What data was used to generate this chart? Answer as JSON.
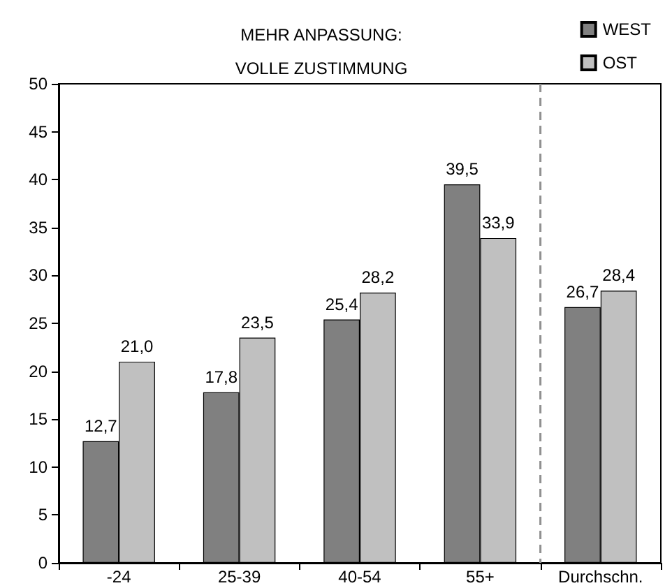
{
  "chart_data": {
    "type": "bar",
    "title": "MEHR ANPASSUNG:\nVOLLE ZUSTIMMUNG",
    "categories": [
      "-24",
      "25-39",
      "40-54",
      "55+",
      "Durchschn."
    ],
    "series": [
      {
        "name": "WEST",
        "color": "#808080",
        "values": [
          12.7,
          17.8,
          25.4,
          39.5,
          26.7
        ],
        "value_labels": [
          "12,7",
          "17,8",
          "25,4",
          "39,5",
          "26,7"
        ]
      },
      {
        "name": "OST",
        "color": "#c0c0c0",
        "values": [
          21.0,
          23.5,
          28.2,
          33.9,
          28.4
        ],
        "value_labels": [
          "21,0",
          "23,5",
          "28,2",
          "33,9",
          "28,4"
        ]
      }
    ],
    "ylim": [
      0,
      50
    ],
    "yticks": [
      0,
      5,
      10,
      15,
      20,
      25,
      30,
      35,
      40,
      45,
      50
    ],
    "grid": false,
    "legend": "top right"
  }
}
